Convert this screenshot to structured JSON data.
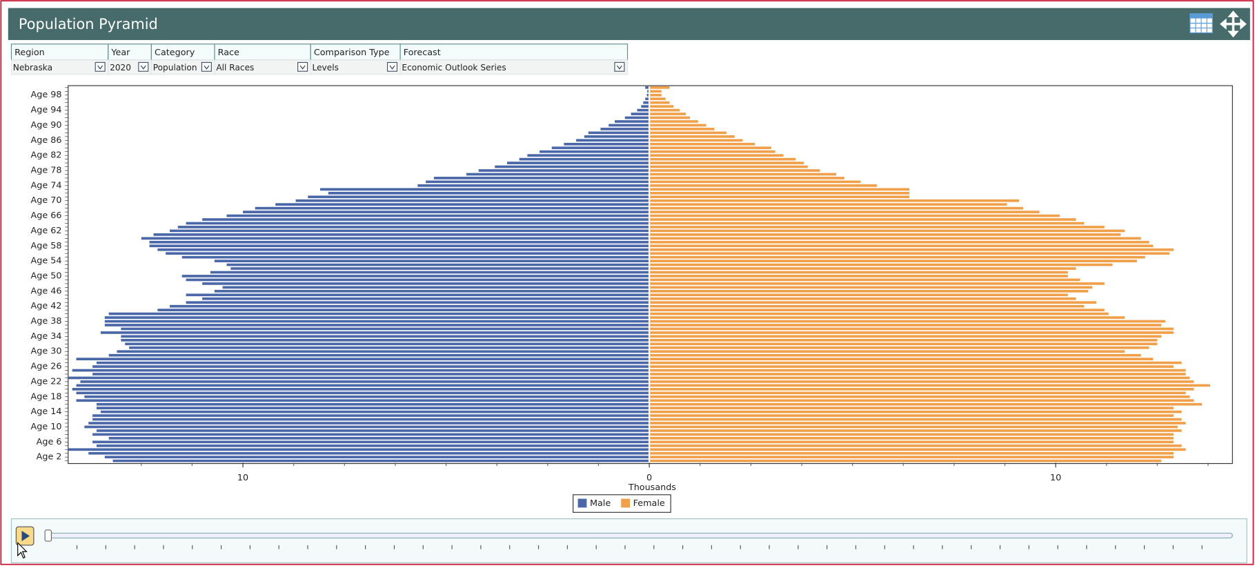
{
  "header": {
    "title": "Population Pyramid"
  },
  "filters": {
    "headers": [
      "Region",
      "Year",
      "Category",
      "Race",
      "Comparison Type",
      "Forecast"
    ],
    "values": [
      "Nebraska",
      "2020",
      "Population",
      "All Races",
      "Levels",
      "Economic Outlook Series"
    ]
  },
  "chart_data": {
    "type": "pyramid",
    "x_label": "Thousands",
    "categories": [
      null,
      "Age 2",
      null,
      null,
      null,
      "Age 6",
      null,
      null,
      null,
      "Age 10",
      null,
      null,
      null,
      "Age 14",
      null,
      null,
      null,
      "Age 18",
      null,
      null,
      null,
      "Age 22",
      null,
      null,
      null,
      "Age 26",
      null,
      null,
      null,
      "Age 30",
      null,
      null,
      null,
      "Age 34",
      null,
      null,
      null,
      "Age 38",
      null,
      null,
      null,
      "Age 42",
      null,
      null,
      null,
      "Age 46",
      null,
      null,
      null,
      "Age 50",
      null,
      null,
      null,
      "Age 54",
      null,
      null,
      null,
      "Age 58",
      null,
      null,
      null,
      "Age 62",
      null,
      null,
      null,
      "Age 66",
      null,
      null,
      null,
      "Age 70",
      null,
      null,
      null,
      "Age 74",
      null,
      null,
      null,
      "Age 78",
      null,
      null,
      null,
      "Age 82",
      null,
      null,
      null,
      "Age 86",
      null,
      null,
      null,
      "Age 90",
      null,
      null,
      null,
      "Age 94",
      null,
      null,
      null,
      "Age 98",
      null,
      null
    ],
    "series": [
      {
        "name": "Male",
        "color": "#4a67a8",
        "side": "left",
        "values": [
          13.2,
          13.4,
          13.8,
          14.3,
          13.6,
          13.7,
          13.3,
          13.7,
          13.6,
          13.9,
          13.8,
          13.7,
          13.7,
          13.5,
          13.6,
          13.6,
          14.1,
          13.9,
          14.1,
          14.2,
          14.1,
          14.0,
          14.3,
          13.7,
          14.2,
          13.7,
          13.6,
          14.1,
          13.3,
          13.1,
          12.8,
          12.9,
          13.0,
          13.0,
          13.5,
          13.0,
          13.4,
          13.4,
          13.4,
          13.3,
          12.1,
          11.8,
          11.4,
          11.0,
          11.4,
          10.7,
          10.5,
          11.0,
          11.4,
          11.5,
          10.8,
          10.3,
          10.4,
          10.7,
          11.5,
          11.9,
          12.1,
          12.3,
          12.3,
          12.5,
          12.2,
          11.8,
          11.6,
          11.4,
          11.0,
          10.4,
          10.0,
          9.7,
          9.2,
          8.7,
          8.4,
          7.9,
          8.1,
          5.7,
          5.5,
          5.3,
          4.5,
          4.2,
          3.8,
          3.5,
          3.2,
          3.0,
          2.7,
          2.4,
          2.1,
          1.8,
          1.6,
          1.5,
          1.2,
          1.0,
          0.85,
          0.6,
          0.45,
          0.3,
          0.2,
          0.15,
          0.1,
          0.06,
          0.05,
          0.1
        ]
      },
      {
        "name": "Female",
        "color": "#f0a04b",
        "side": "right",
        "values": [
          12.6,
          12.9,
          12.9,
          13.2,
          13.1,
          12.9,
          12.9,
          12.9,
          13.1,
          13.0,
          13.2,
          13.1,
          12.9,
          13.1,
          12.9,
          13.6,
          13.4,
          13.3,
          13.2,
          13.4,
          13.8,
          13.4,
          13.3,
          13.2,
          13.2,
          12.9,
          13.1,
          12.4,
          12.1,
          11.7,
          12.3,
          12.5,
          12.5,
          12.6,
          12.9,
          12.9,
          12.6,
          12.7,
          11.7,
          11.3,
          11.2,
          10.7,
          11.0,
          10.5,
          10.3,
          10.8,
          10.9,
          11.2,
          10.6,
          10.3,
          10.3,
          10.5,
          11.4,
          12.0,
          12.2,
          12.8,
          12.9,
          12.4,
          12.3,
          12.1,
          11.6,
          11.7,
          11.2,
          10.7,
          10.5,
          10.1,
          9.6,
          9.2,
          8.8,
          9.1,
          6.4,
          6.4,
          6.4,
          5.6,
          5.2,
          4.8,
          4.6,
          4.2,
          3.9,
          3.8,
          3.6,
          3.3,
          3.1,
          3.0,
          2.6,
          2.3,
          2.1,
          1.9,
          1.6,
          1.4,
          1.2,
          1.0,
          0.9,
          0.75,
          0.6,
          0.5,
          0.4,
          0.3,
          0.3,
          0.5
        ]
      }
    ],
    "xlim": [
      -14.3,
      14.35
    ],
    "xticks": [
      {
        "value": -10,
        "label": "10"
      },
      0,
      10
    ],
    "xminorticks": [
      -12.5,
      -11.25,
      -8.75,
      -7.5,
      -6.25,
      -5,
      -3.75,
      -2.5,
      -1.25,
      1.25,
      2.5,
      3.75,
      5,
      6.25,
      7.5,
      8.75,
      11.25,
      12.5,
      13.75
    ],
    "legend": "bottom"
  }
}
